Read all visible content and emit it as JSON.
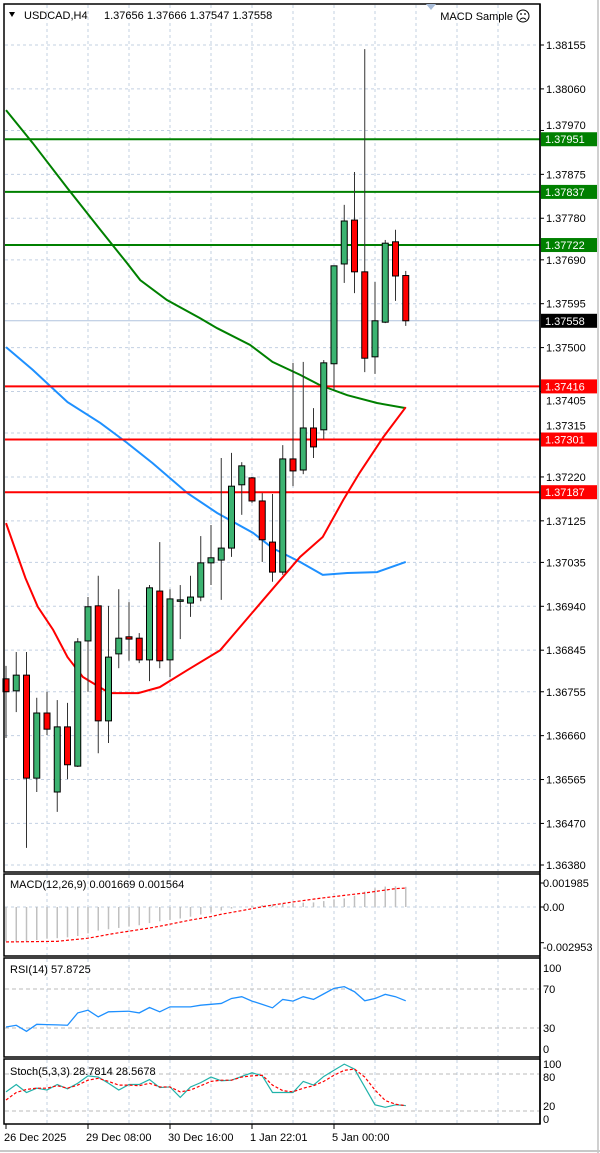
{
  "header": {
    "symbol_timeframe": "USDCAD,H4",
    "ohlc": "1.37656 1.37666 1.37547 1.37558",
    "expert_name": "MACD Sample",
    "expert_icon": "sad-face-icon",
    "menu_icon": "triangle-down-icon"
  },
  "colors": {
    "bull_candle": "#3cb371",
    "bear_candle": "#ff0000",
    "grid": "#c3d0e2",
    "support_line": "#ff0000",
    "resistance_line": "#008000",
    "current_price_label": "#000000",
    "ma_green": "#008000",
    "ma_blue": "#1e90ff",
    "ma_red": "#ff0000",
    "macd_histogram": "#c0c0c0",
    "macd_signal": "#ff0000",
    "rsi_line": "#1e90ff",
    "stoch_main": "#20b2aa",
    "stoch_signal": "#ff0000"
  },
  "chart_data": [
    {
      "type": "candlestick",
      "symbol": "USDCAD",
      "timeframe": "H4",
      "grid": true,
      "ohlc": [
        [
          1.36783,
          1.36811,
          1.36655,
          1.36755
        ],
        [
          1.36757,
          1.36841,
          1.36711,
          1.36791
        ],
        [
          1.36791,
          1.36841,
          1.36417,
          1.36568
        ],
        [
          1.36568,
          1.36742,
          1.36538,
          1.36709
        ],
        [
          1.36709,
          1.36755,
          1.36661,
          1.36674
        ],
        [
          1.36538,
          1.36737,
          1.36495,
          1.36679
        ],
        [
          1.36679,
          1.36731,
          1.36566,
          1.36597
        ],
        [
          1.36594,
          1.36871,
          1.36592,
          1.36863
        ],
        [
          1.36865,
          1.3696,
          1.36755,
          1.36939
        ],
        [
          1.36941,
          1.37006,
          1.36622,
          1.36692
        ],
        [
          1.36692,
          1.36941,
          1.36644,
          1.3683
        ],
        [
          1.36837,
          1.36977,
          1.36806,
          1.36871
        ],
        [
          1.36874,
          1.36949,
          1.36822,
          1.36869
        ],
        [
          1.36871,
          1.36882,
          1.36817,
          1.36824
        ],
        [
          1.36824,
          1.36986,
          1.36778,
          1.3698
        ],
        [
          1.36973,
          1.37079,
          1.36806,
          1.36822
        ],
        [
          1.36824,
          1.36977,
          1.36787,
          1.36956
        ],
        [
          1.36951,
          1.36986,
          1.36869,
          1.36954
        ],
        [
          1.36947,
          1.37006,
          1.36917,
          1.3696
        ],
        [
          1.3696,
          1.37092,
          1.36951,
          1.37034
        ],
        [
          1.37034,
          1.37116,
          1.36986,
          1.37045
        ],
        [
          1.3704,
          1.37261,
          1.36954,
          1.37066
        ],
        [
          1.37066,
          1.37272,
          1.37047,
          1.372
        ],
        [
          1.37203,
          1.37252,
          1.37138,
          1.37244
        ],
        [
          1.37218,
          1.3722,
          1.37164,
          1.37168
        ],
        [
          1.37168,
          1.37185,
          1.37036,
          1.37084
        ],
        [
          1.37079,
          1.37183,
          1.36993,
          1.37014
        ],
        [
          1.37014,
          1.37289,
          1.37008,
          1.37259
        ],
        [
          1.37259,
          1.37467,
          1.372,
          1.37233
        ],
        [
          1.37235,
          1.37469,
          1.37226,
          1.37326
        ],
        [
          1.37326,
          1.37369,
          1.37261,
          1.37285
        ],
        [
          1.37322,
          1.37473,
          1.37302,
          1.37467
        ],
        [
          1.37465,
          1.37677,
          1.37408,
          1.37677
        ],
        [
          1.37681,
          1.37809,
          1.3764,
          1.37774
        ],
        [
          1.37776,
          1.3788,
          1.37618,
          1.37664
        ],
        [
          1.37664,
          1.38146,
          1.37447,
          1.37477
        ],
        [
          1.3748,
          1.37642,
          1.37443,
          1.37558
        ],
        [
          1.37555,
          1.37733,
          1.37553,
          1.37726
        ],
        [
          1.37729,
          1.37755,
          1.37601,
          1.37655
        ],
        [
          1.37656,
          1.37666,
          1.37547,
          1.37558
        ]
      ],
      "moving_averages": [
        {
          "color_key": "ma_green",
          "points": [
            [
              0,
              1.38014
            ],
            [
              2.6,
              1.37943
            ],
            [
              6,
              1.37845
            ],
            [
              9.2,
              1.37755
            ],
            [
              11.8,
              1.37683
            ],
            [
              13.1,
              1.37646
            ],
            [
              15.7,
              1.37603
            ],
            [
              18.9,
              1.37564
            ],
            [
              20.6,
              1.37542
            ],
            [
              23.8,
              1.37506
            ],
            [
              26,
              1.37469
            ],
            [
              28.7,
              1.37441
            ],
            [
              30.6,
              1.37419
            ],
            [
              33.3,
              1.37397
            ],
            [
              36.2,
              1.3738
            ],
            [
              39,
              1.37369
            ]
          ]
        },
        {
          "color_key": "ma_blue",
          "points": [
            [
              0,
              1.37501
            ],
            [
              2.6,
              1.37452
            ],
            [
              6,
              1.37382
            ],
            [
              9.2,
              1.37337
            ],
            [
              11.8,
              1.37294
            ],
            [
              14.3,
              1.3725
            ],
            [
              17.7,
              1.37185
            ],
            [
              20.6,
              1.37142
            ],
            [
              24.1,
              1.37099
            ],
            [
              26,
              1.37066
            ],
            [
              28.7,
              1.37036
            ],
            [
              30.9,
              1.37008
            ],
            [
              33.3,
              1.37012
            ],
            [
              36.2,
              1.37014
            ],
            [
              39,
              1.37036
            ]
          ]
        },
        {
          "color_key": "ma_red",
          "points": [
            [
              0,
              1.3712
            ],
            [
              1.9,
              1.37001
            ],
            [
              3.1,
              1.36939
            ],
            [
              4.6,
              1.36889
            ],
            [
              6,
              1.3683
            ],
            [
              7.5,
              1.36787
            ],
            [
              10.1,
              1.36752
            ],
            [
              12.9,
              1.36752
            ],
            [
              15,
              1.36765
            ],
            [
              17.7,
              1.36802
            ],
            [
              20.9,
              1.36845
            ],
            [
              25.1,
              1.36954
            ],
            [
              28.7,
              1.37047
            ],
            [
              30.9,
              1.3709
            ],
            [
              32.9,
              1.3717
            ],
            [
              34.5,
              1.37229
            ],
            [
              36.8,
              1.37306
            ],
            [
              39,
              1.37371
            ]
          ]
        }
      ],
      "horizontal_lines": [
        {
          "price": 1.37951,
          "label": "1.37951",
          "color_key": "resistance_line"
        },
        {
          "price": 1.37837,
          "label": "1.37837",
          "color_key": "resistance_line"
        },
        {
          "price": 1.37722,
          "label": "1.37722",
          "color_key": "resistance_line"
        },
        {
          "price": 1.37416,
          "label": "1.37416",
          "color_key": "support_line"
        },
        {
          "price": 1.37301,
          "label": "1.37301",
          "color_key": "support_line"
        },
        {
          "price": 1.37187,
          "label": "1.37187",
          "color_key": "support_line"
        }
      ],
      "current_price": {
        "price": 1.37558,
        "label": "1.37558"
      },
      "y_axis": {
        "ticks": [
          "1.38155",
          "1.38060",
          "1.37970",
          "1.37875",
          "1.37780",
          "1.37690",
          "1.37595",
          "1.37500",
          "1.37405",
          "1.37315",
          "1.37220",
          "1.37125",
          "1.37035",
          "1.36940",
          "1.36845",
          "1.36755",
          "1.36660",
          "1.36565",
          "1.36470",
          "1.36380"
        ],
        "range": [
          1.3638,
          1.38155
        ]
      },
      "x_axis": {
        "ticks": [
          {
            "bar": 0,
            "label": "26 Dec 2025"
          },
          {
            "bar": 8,
            "label": "29 Dec 08:00"
          },
          {
            "bar": 16,
            "label": "30 Dec 16:00"
          },
          {
            "bar": 24,
            "label": "1 Jan 22:01"
          },
          {
            "bar": 32,
            "label": "5 Jan 00:00"
          }
        ]
      }
    },
    {
      "type": "bar",
      "title": "MACD(12,26,9) 0.001669 0.001564",
      "histogram": [
        -0.00284,
        -0.00291,
        -0.00284,
        -0.00273,
        -0.00262,
        -0.00258,
        -0.00251,
        -0.0024,
        -0.00218,
        -0.00195,
        -0.00184,
        -0.00173,
        -0.00162,
        -0.00151,
        -0.00133,
        -0.00118,
        -0.00107,
        -0.00095,
        -0.0008,
        -0.00062,
        -0.00044,
        -0.00029,
        -0.00013,
        0.0,
        9e-05,
        0.00016,
        0.00022,
        0.00027,
        0.00031,
        0.00036,
        0.00038,
        0.00049,
        0.0006,
        0.00071,
        0.00093,
        0.00127,
        0.00155,
        0.00169,
        0.00171,
        0.001669
      ],
      "signal": [
        -0.00289,
        -0.00288,
        -0.00287,
        -0.00286,
        -0.00285,
        -0.00284,
        -0.00275,
        -0.00267,
        -0.00258,
        -0.00243,
        -0.00227,
        -0.00213,
        -0.002,
        -0.00187,
        -0.00174,
        -0.00159,
        -0.00142,
        -0.00125,
        -0.00108,
        -0.00094,
        -0.00079,
        -0.0006,
        -0.00045,
        -0.0003,
        -0.00014,
        2e-05,
        0.00016,
        0.00029,
        0.00042,
        0.00053,
        0.00065,
        0.00076,
        0.00086,
        0.00096,
        0.00106,
        0.00116,
        0.00128,
        0.0014,
        0.00152,
        0.001564
      ],
      "y_ticks": [
        {
          "value": 0.001985,
          "label": "0.001985"
        },
        {
          "value": 0,
          "label": "0.00"
        },
        {
          "value": -0.002953,
          "label": "-0.002953"
        }
      ],
      "ylim": [
        -0.002953,
        0.001985
      ]
    },
    {
      "type": "line",
      "title": "RSI(14) 57.8725",
      "values": [
        31.0,
        32.8,
        26.6,
        33.8,
        33.5,
        33.2,
        32.8,
        45.5,
        48.3,
        41.4,
        46.6,
        46.9,
        47.2,
        45.5,
        51.0,
        46.6,
        51.7,
        51.7,
        51.7,
        53.4,
        54.3,
        55.2,
        60.3,
        62.1,
        57.6,
        54.2,
        50.7,
        59.3,
        57.6,
        62.1,
        59.3,
        65.0,
        70.7,
        72.4,
        67.2,
        57.9,
        60.3,
        64.5,
        62.1,
        57.87
      ],
      "levels": [
        70,
        30
      ],
      "y_ticks": [
        {
          "value": 100,
          "label": "100"
        },
        {
          "value": 70,
          "label": "70"
        },
        {
          "value": 30,
          "label": "30"
        },
        {
          "value": 0,
          "label": "0"
        }
      ],
      "ylim": [
        0,
        100
      ]
    },
    {
      "type": "line",
      "title": "Stoch(5,3,3) 28.7814 28.5678",
      "main": [
        51,
        63,
        50,
        57,
        54,
        63,
        56,
        65,
        77,
        75,
        65,
        54,
        63,
        63,
        71,
        58,
        59,
        42,
        59,
        66,
        75,
        69,
        70,
        76,
        82,
        77,
        50,
        50,
        50,
        68,
        62,
        76,
        86,
        96,
        88,
        59,
        30,
        26,
        30,
        28.78
      ],
      "signal": [
        37.8,
        50,
        55,
        57,
        57,
        61,
        57,
        62,
        70,
        73,
        68,
        62,
        62,
        61,
        65,
        59,
        59,
        51,
        54,
        61,
        68,
        70,
        70,
        75,
        77,
        78,
        62,
        53,
        51,
        57,
        61,
        68,
        78,
        86,
        88,
        75,
        54,
        37,
        31,
        28.57
      ],
      "levels": [
        80,
        20
      ],
      "y_ticks": [
        {
          "value": 100,
          "label": "100"
        },
        {
          "value": 80,
          "label": "80"
        },
        {
          "value": 20,
          "label": "20"
        },
        {
          "value": 0,
          "label": "0"
        }
      ],
      "ylim": [
        0,
        100
      ]
    }
  ]
}
